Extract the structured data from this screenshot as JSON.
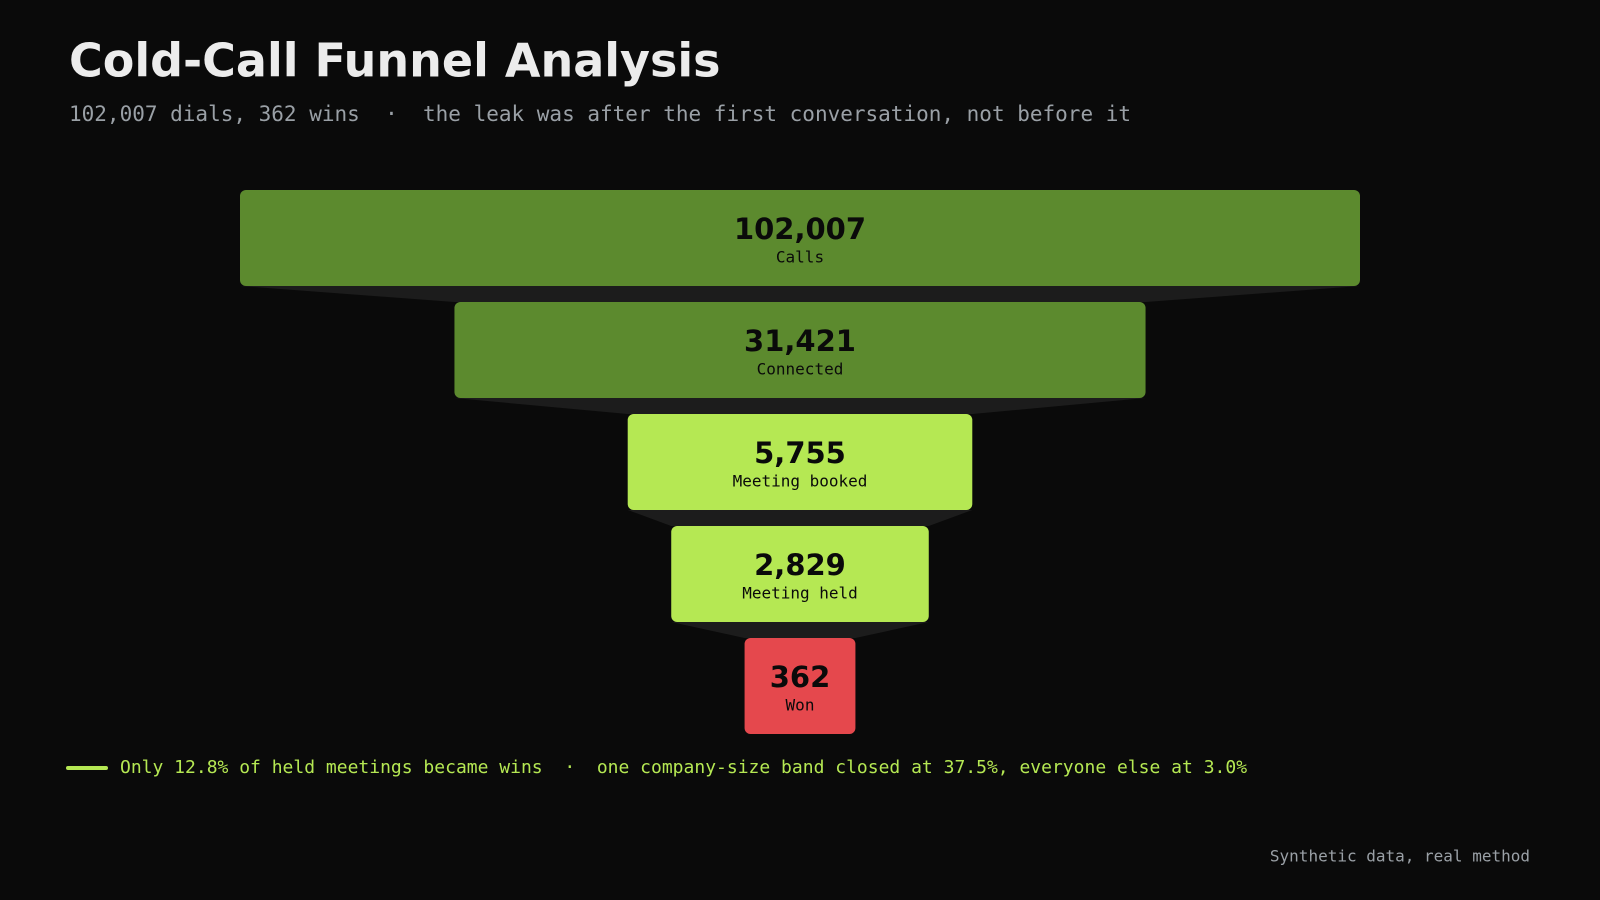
{
  "chart_data": {
    "type": "funnel",
    "title": "Cold-Call Funnel Analysis",
    "subtitle": "102,007 dials, 362 wins  ·  the leak was after the first conversation, not before it",
    "categories": [
      "Calls",
      "Connected",
      "Meeting booked",
      "Meeting held",
      "Won"
    ],
    "values": [
      102007,
      31421,
      5755,
      2829,
      362
    ],
    "value_labels": [
      "102,007",
      "31,421",
      "5,755",
      "2,829",
      "362"
    ],
    "colors": [
      "#5c8a2e",
      "#5c8a2e",
      "#b5e853",
      "#b5e853",
      "#e5484d"
    ],
    "annotation": "Only 12.8% of held meetings became wins  ·  one company-size band closed at 37.5%, everyone else at 3.0%",
    "footer": "Synthetic data, real method"
  }
}
